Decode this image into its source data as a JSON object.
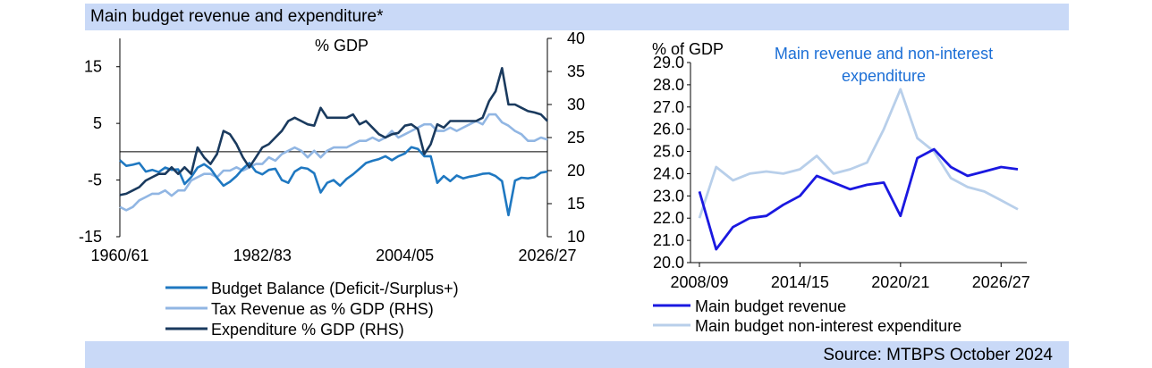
{
  "header": {
    "title": "Main budget revenue and expenditure*"
  },
  "footer": {
    "source": "Source: MTBPS October 2024"
  },
  "chart_data": [
    {
      "type": "line",
      "title": "",
      "unit_label": "% GDP",
      "x_tick_labels": [
        "1960/61",
        "1982/83",
        "2004/05",
        "2026/27"
      ],
      "x_tick_index": [
        0,
        22,
        44,
        66
      ],
      "left_axis": {
        "ticks": [
          -15,
          -5,
          5,
          15
        ],
        "tick_labels": [
          "-15",
          "-5",
          "5",
          "15"
        ],
        "ylim": [
          -15,
          20
        ]
      },
      "right_axis": {
        "ticks": [
          10,
          15,
          20,
          25,
          30,
          35,
          40
        ],
        "ylim": [
          10,
          40
        ]
      },
      "colors": {
        "budget_balance": "#1f78c1",
        "tax_revenue": "#91b6e3",
        "expenditure": "#1a3a5e"
      },
      "series": [
        {
          "name": "Budget Balance (Deficit-/Surplus+)",
          "axis": "left",
          "values": [
            -1.5,
            -2.5,
            -2.3,
            -2,
            -3.5,
            -3.2,
            -3.6,
            -2.8,
            -3.2,
            -3.1,
            -5.7,
            -4.5,
            -2.8,
            -2.2,
            -3,
            -4.6,
            -6,
            -5.3,
            -4.3,
            -3,
            -2,
            -3.5,
            -4,
            -3.2,
            -3,
            -5,
            -5.5,
            -3.5,
            -2.8,
            -3,
            -3.8,
            -7.2,
            -5.5,
            -5,
            -6,
            -4.8,
            -4,
            -3,
            -2,
            -1.6,
            -1.3,
            -0.8,
            -1.5,
            -0.8,
            -0.3,
            0.8,
            0.5,
            -0.8,
            -0.8,
            -5.5,
            -4.3,
            -5.2,
            -4.2,
            -4.7,
            -4.4,
            -4.2,
            -3.9,
            -3.8,
            -4.3,
            -5.2,
            -11.2,
            -5.1,
            -4.6,
            -4.7,
            -4.5,
            -3.7,
            -3.5
          ]
        },
        {
          "name": "Tax Revenue as % GDP (RHS)",
          "axis": "right",
          "values": [
            14.5,
            14,
            14.5,
            15.5,
            16,
            16.5,
            16.5,
            17,
            16.2,
            17,
            17,
            18.5,
            19,
            19.5,
            19.5,
            19,
            20,
            20,
            20.5,
            20,
            20.5,
            21,
            21,
            22,
            21.5,
            22.5,
            23,
            23.5,
            23,
            22,
            23,
            22,
            23,
            23.5,
            23.5,
            23.5,
            24,
            24.5,
            24.5,
            25,
            24.5,
            25,
            26,
            25,
            25.5,
            26,
            26.5,
            27,
            27,
            26,
            26,
            26.5,
            26,
            26.5,
            27,
            27.5,
            27,
            28.5,
            28.5,
            27.3,
            26.8,
            26,
            25.5,
            24.5,
            24.5,
            25,
            24.7
          ]
        },
        {
          "name": "Expenditure % GDP (RHS)",
          "axis": "right",
          "values": [
            16.3,
            16.5,
            17,
            17.5,
            18.5,
            19,
            19.5,
            19.5,
            20.5,
            19.5,
            20.5,
            19.5,
            23.5,
            22,
            21,
            22.5,
            26,
            25.5,
            24,
            22,
            20.5,
            22,
            23.5,
            24,
            25,
            26,
            27.5,
            28,
            27.5,
            27,
            26.8,
            29.5,
            28,
            28,
            28,
            28,
            28.5,
            27,
            27.5,
            26.5,
            25.5,
            25,
            25.5,
            25.7,
            26.8,
            27,
            26.3,
            22.5,
            24,
            27,
            26.5,
            27.5,
            27.5,
            27.5,
            27.5,
            27.5,
            28,
            30.5,
            32,
            35.5,
            30,
            30,
            29.5,
            29,
            28.8,
            28.5,
            27.5
          ]
        }
      ]
    },
    {
      "type": "line",
      "title": "Main revenue and non-interest expenditure",
      "unit_label": "% of GDP",
      "x_tick_labels": [
        "2008/09",
        "2014/15",
        "2020/21",
        "2026/27"
      ],
      "x_tick_index": [
        0,
        6,
        12,
        18
      ],
      "ylim": [
        20,
        29
      ],
      "y_ticks": [
        "20.0",
        "21.0",
        "22.0",
        "23.0",
        "24.0",
        "25.0",
        "26.0",
        "27.0",
        "28.0",
        "29.0"
      ],
      "colors": {
        "revenue": "#1a18e0",
        "expenditure": "#b8cfea",
        "title": "#1c6fd6"
      },
      "series": [
        {
          "name": "Main budget revenue",
          "values": [
            23.2,
            20.6,
            21.6,
            22.0,
            22.1,
            22.6,
            23.0,
            23.9,
            23.6,
            23.3,
            23.5,
            23.6,
            22.1,
            24.7,
            25.1,
            24.3,
            23.9,
            24.1,
            24.3,
            24.2
          ]
        },
        {
          "name": "Main budget non-interest expenditure",
          "values": [
            22.0,
            24.3,
            23.7,
            24.0,
            24.1,
            24.0,
            24.2,
            24.8,
            24.0,
            24.2,
            24.5,
            26.0,
            27.8,
            25.6,
            25.0,
            23.8,
            23.4,
            23.2,
            22.8,
            22.4
          ]
        }
      ]
    }
  ]
}
